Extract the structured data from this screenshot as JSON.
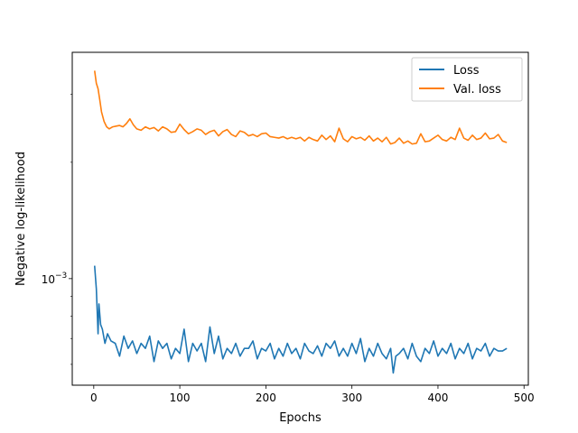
{
  "chart_data": {
    "type": "line",
    "title": "",
    "xlabel": "Epochs",
    "ylabel": "Negative log-likelihood",
    "xlim": [
      -25,
      505
    ],
    "ylim": [
      0.00053,
      0.00385
    ],
    "yscale": "log",
    "x_ticks": [
      0,
      100,
      200,
      300,
      400,
      500
    ],
    "y_ticks": [
      {
        "value": 0.001,
        "label": "10",
        "exponent": "−3"
      }
    ],
    "grid": false,
    "legend": {
      "position": "top-right",
      "entries": [
        "Loss",
        "Val. loss"
      ]
    },
    "series": [
      {
        "name": "Loss",
        "color": "#1f77b4",
        "x": [
          1,
          3,
          5,
          6,
          8,
          10,
          13,
          16,
          20,
          25,
          30,
          35,
          40,
          45,
          50,
          55,
          60,
          65,
          70,
          75,
          80,
          85,
          90,
          95,
          100,
          105,
          110,
          115,
          120,
          125,
          130,
          135,
          140,
          145,
          150,
          155,
          160,
          165,
          170,
          175,
          180,
          185,
          190,
          195,
          200,
          205,
          210,
          215,
          220,
          225,
          230,
          235,
          240,
          245,
          250,
          255,
          260,
          265,
          270,
          275,
          280,
          285,
          290,
          295,
          300,
          305,
          310,
          315,
          320,
          325,
          330,
          335,
          340,
          345,
          348,
          351,
          355,
          360,
          365,
          370,
          375,
          380,
          385,
          390,
          395,
          400,
          405,
          410,
          415,
          420,
          425,
          430,
          435,
          440,
          445,
          450,
          455,
          460,
          465,
          470,
          475,
          480
        ],
        "y": [
          0.00108,
          0.00094,
          0.00072,
          0.00086,
          0.00076,
          0.00074,
          0.00068,
          0.00072,
          0.00069,
          0.00068,
          0.00063,
          0.00071,
          0.00066,
          0.00069,
          0.00064,
          0.00068,
          0.00066,
          0.00071,
          0.00061,
          0.00069,
          0.00066,
          0.00068,
          0.00062,
          0.00066,
          0.00064,
          0.00074,
          0.00061,
          0.00068,
          0.00065,
          0.00068,
          0.00061,
          0.00075,
          0.00064,
          0.00071,
          0.00062,
          0.00066,
          0.00064,
          0.00068,
          0.00063,
          0.00066,
          0.00066,
          0.00069,
          0.00062,
          0.00066,
          0.00065,
          0.00068,
          0.00062,
          0.00066,
          0.00063,
          0.00068,
          0.00064,
          0.00066,
          0.00062,
          0.00068,
          0.00065,
          0.00064,
          0.00067,
          0.00063,
          0.00068,
          0.00066,
          0.00069,
          0.00063,
          0.00066,
          0.00063,
          0.00068,
          0.00064,
          0.0007,
          0.00061,
          0.00066,
          0.00063,
          0.00068,
          0.00064,
          0.00062,
          0.00066,
          0.00057,
          0.00063,
          0.00064,
          0.00066,
          0.00062,
          0.00068,
          0.00063,
          0.00061,
          0.00066,
          0.00064,
          0.00069,
          0.00063,
          0.00066,
          0.00064,
          0.00068,
          0.00062,
          0.00066,
          0.00064,
          0.00068,
          0.00062,
          0.00066,
          0.00065,
          0.00068,
          0.00063,
          0.00066,
          0.00065,
          0.00065,
          0.00066
        ]
      },
      {
        "name": "Val. loss",
        "color": "#ff7f0e",
        "x": [
          1,
          3,
          5,
          7,
          9,
          12,
          15,
          18,
          22,
          26,
          30,
          34,
          38,
          42,
          46,
          50,
          55,
          60,
          65,
          70,
          75,
          80,
          85,
          90,
          95,
          100,
          105,
          110,
          115,
          120,
          125,
          130,
          135,
          140,
          145,
          150,
          155,
          160,
          165,
          170,
          175,
          180,
          185,
          190,
          195,
          200,
          205,
          210,
          215,
          220,
          225,
          230,
          235,
          240,
          245,
          250,
          255,
          260,
          265,
          270,
          275,
          280,
          285,
          290,
          295,
          300,
          305,
          310,
          315,
          320,
          325,
          330,
          335,
          340,
          345,
          350,
          355,
          360,
          365,
          370,
          375,
          380,
          385,
          390,
          395,
          400,
          405,
          410,
          415,
          420,
          425,
          430,
          435,
          440,
          445,
          450,
          455,
          460,
          465,
          470,
          475,
          480
        ],
        "y": [
          0.00345,
          0.0032,
          0.0031,
          0.0029,
          0.0027,
          0.00255,
          0.00247,
          0.00244,
          0.00247,
          0.00248,
          0.00249,
          0.00247,
          0.00252,
          0.00259,
          0.0025,
          0.00244,
          0.00242,
          0.00247,
          0.00244,
          0.00246,
          0.00241,
          0.00247,
          0.00244,
          0.00239,
          0.0024,
          0.00251,
          0.00243,
          0.00237,
          0.0024,
          0.00244,
          0.00242,
          0.00236,
          0.0024,
          0.00242,
          0.00234,
          0.0024,
          0.00243,
          0.00236,
          0.00233,
          0.00241,
          0.00239,
          0.00234,
          0.00236,
          0.00233,
          0.00237,
          0.00238,
          0.00233,
          0.00232,
          0.00231,
          0.00233,
          0.0023,
          0.00232,
          0.0023,
          0.00232,
          0.00227,
          0.00232,
          0.00229,
          0.00227,
          0.00235,
          0.00229,
          0.00234,
          0.00226,
          0.00245,
          0.0023,
          0.00226,
          0.00233,
          0.0023,
          0.00232,
          0.00228,
          0.00234,
          0.00227,
          0.00231,
          0.00226,
          0.00232,
          0.00223,
          0.00225,
          0.00231,
          0.00224,
          0.00227,
          0.00223,
          0.00224,
          0.00237,
          0.00226,
          0.00227,
          0.00231,
          0.00235,
          0.00229,
          0.00227,
          0.00232,
          0.00229,
          0.00245,
          0.00231,
          0.00228,
          0.00235,
          0.00229,
          0.00231,
          0.00238,
          0.0023,
          0.00231,
          0.00236,
          0.00227,
          0.00225
        ]
      }
    ]
  }
}
